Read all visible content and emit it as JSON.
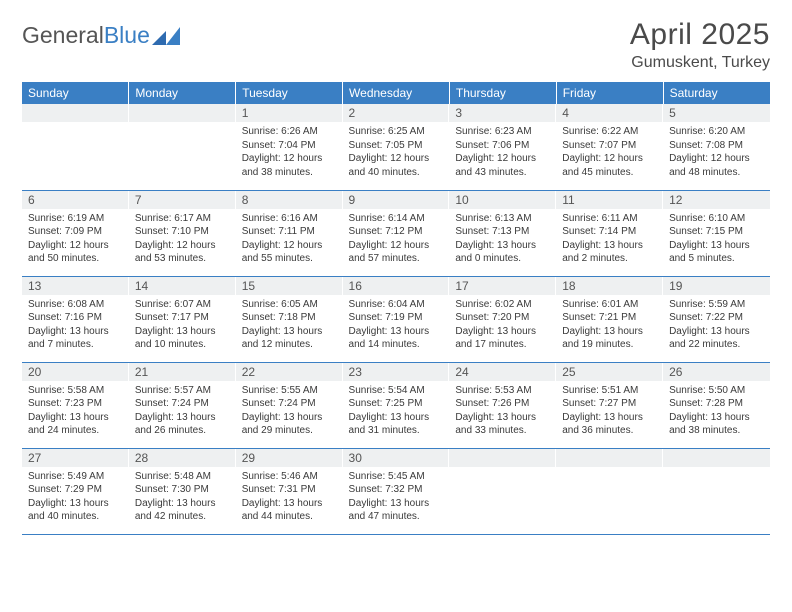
{
  "logo": {
    "part1": "General",
    "part2": "Blue"
  },
  "title": {
    "month": "April 2025",
    "location": "Gumuskent, Turkey"
  },
  "header_bg": "#3a7fc4",
  "daynum_bg": "#eef0f1",
  "weekdays": [
    "Sunday",
    "Monday",
    "Tuesday",
    "Wednesday",
    "Thursday",
    "Friday",
    "Saturday"
  ],
  "weeks": [
    [
      {
        "n": "",
        "lines": []
      },
      {
        "n": "",
        "lines": []
      },
      {
        "n": "1",
        "lines": [
          "Sunrise: 6:26 AM",
          "Sunset: 7:04 PM",
          "Daylight: 12 hours",
          "and 38 minutes."
        ]
      },
      {
        "n": "2",
        "lines": [
          "Sunrise: 6:25 AM",
          "Sunset: 7:05 PM",
          "Daylight: 12 hours",
          "and 40 minutes."
        ]
      },
      {
        "n": "3",
        "lines": [
          "Sunrise: 6:23 AM",
          "Sunset: 7:06 PM",
          "Daylight: 12 hours",
          "and 43 minutes."
        ]
      },
      {
        "n": "4",
        "lines": [
          "Sunrise: 6:22 AM",
          "Sunset: 7:07 PM",
          "Daylight: 12 hours",
          "and 45 minutes."
        ]
      },
      {
        "n": "5",
        "lines": [
          "Sunrise: 6:20 AM",
          "Sunset: 7:08 PM",
          "Daylight: 12 hours",
          "and 48 minutes."
        ]
      }
    ],
    [
      {
        "n": "6",
        "lines": [
          "Sunrise: 6:19 AM",
          "Sunset: 7:09 PM",
          "Daylight: 12 hours",
          "and 50 minutes."
        ]
      },
      {
        "n": "7",
        "lines": [
          "Sunrise: 6:17 AM",
          "Sunset: 7:10 PM",
          "Daylight: 12 hours",
          "and 53 minutes."
        ]
      },
      {
        "n": "8",
        "lines": [
          "Sunrise: 6:16 AM",
          "Sunset: 7:11 PM",
          "Daylight: 12 hours",
          "and 55 minutes."
        ]
      },
      {
        "n": "9",
        "lines": [
          "Sunrise: 6:14 AM",
          "Sunset: 7:12 PM",
          "Daylight: 12 hours",
          "and 57 minutes."
        ]
      },
      {
        "n": "10",
        "lines": [
          "Sunrise: 6:13 AM",
          "Sunset: 7:13 PM",
          "Daylight: 13 hours",
          "and 0 minutes."
        ]
      },
      {
        "n": "11",
        "lines": [
          "Sunrise: 6:11 AM",
          "Sunset: 7:14 PM",
          "Daylight: 13 hours",
          "and 2 minutes."
        ]
      },
      {
        "n": "12",
        "lines": [
          "Sunrise: 6:10 AM",
          "Sunset: 7:15 PM",
          "Daylight: 13 hours",
          "and 5 minutes."
        ]
      }
    ],
    [
      {
        "n": "13",
        "lines": [
          "Sunrise: 6:08 AM",
          "Sunset: 7:16 PM",
          "Daylight: 13 hours",
          "and 7 minutes."
        ]
      },
      {
        "n": "14",
        "lines": [
          "Sunrise: 6:07 AM",
          "Sunset: 7:17 PM",
          "Daylight: 13 hours",
          "and 10 minutes."
        ]
      },
      {
        "n": "15",
        "lines": [
          "Sunrise: 6:05 AM",
          "Sunset: 7:18 PM",
          "Daylight: 13 hours",
          "and 12 minutes."
        ]
      },
      {
        "n": "16",
        "lines": [
          "Sunrise: 6:04 AM",
          "Sunset: 7:19 PM",
          "Daylight: 13 hours",
          "and 14 minutes."
        ]
      },
      {
        "n": "17",
        "lines": [
          "Sunrise: 6:02 AM",
          "Sunset: 7:20 PM",
          "Daylight: 13 hours",
          "and 17 minutes."
        ]
      },
      {
        "n": "18",
        "lines": [
          "Sunrise: 6:01 AM",
          "Sunset: 7:21 PM",
          "Daylight: 13 hours",
          "and 19 minutes."
        ]
      },
      {
        "n": "19",
        "lines": [
          "Sunrise: 5:59 AM",
          "Sunset: 7:22 PM",
          "Daylight: 13 hours",
          "and 22 minutes."
        ]
      }
    ],
    [
      {
        "n": "20",
        "lines": [
          "Sunrise: 5:58 AM",
          "Sunset: 7:23 PM",
          "Daylight: 13 hours",
          "and 24 minutes."
        ]
      },
      {
        "n": "21",
        "lines": [
          "Sunrise: 5:57 AM",
          "Sunset: 7:24 PM",
          "Daylight: 13 hours",
          "and 26 minutes."
        ]
      },
      {
        "n": "22",
        "lines": [
          "Sunrise: 5:55 AM",
          "Sunset: 7:24 PM",
          "Daylight: 13 hours",
          "and 29 minutes."
        ]
      },
      {
        "n": "23",
        "lines": [
          "Sunrise: 5:54 AM",
          "Sunset: 7:25 PM",
          "Daylight: 13 hours",
          "and 31 minutes."
        ]
      },
      {
        "n": "24",
        "lines": [
          "Sunrise: 5:53 AM",
          "Sunset: 7:26 PM",
          "Daylight: 13 hours",
          "and 33 minutes."
        ]
      },
      {
        "n": "25",
        "lines": [
          "Sunrise: 5:51 AM",
          "Sunset: 7:27 PM",
          "Daylight: 13 hours",
          "and 36 minutes."
        ]
      },
      {
        "n": "26",
        "lines": [
          "Sunrise: 5:50 AM",
          "Sunset: 7:28 PM",
          "Daylight: 13 hours",
          "and 38 minutes."
        ]
      }
    ],
    [
      {
        "n": "27",
        "lines": [
          "Sunrise: 5:49 AM",
          "Sunset: 7:29 PM",
          "Daylight: 13 hours",
          "and 40 minutes."
        ]
      },
      {
        "n": "28",
        "lines": [
          "Sunrise: 5:48 AM",
          "Sunset: 7:30 PM",
          "Daylight: 13 hours",
          "and 42 minutes."
        ]
      },
      {
        "n": "29",
        "lines": [
          "Sunrise: 5:46 AM",
          "Sunset: 7:31 PM",
          "Daylight: 13 hours",
          "and 44 minutes."
        ]
      },
      {
        "n": "30",
        "lines": [
          "Sunrise: 5:45 AM",
          "Sunset: 7:32 PM",
          "Daylight: 13 hours",
          "and 47 minutes."
        ]
      },
      {
        "n": "",
        "lines": []
      },
      {
        "n": "",
        "lines": []
      },
      {
        "n": "",
        "lines": []
      }
    ]
  ]
}
